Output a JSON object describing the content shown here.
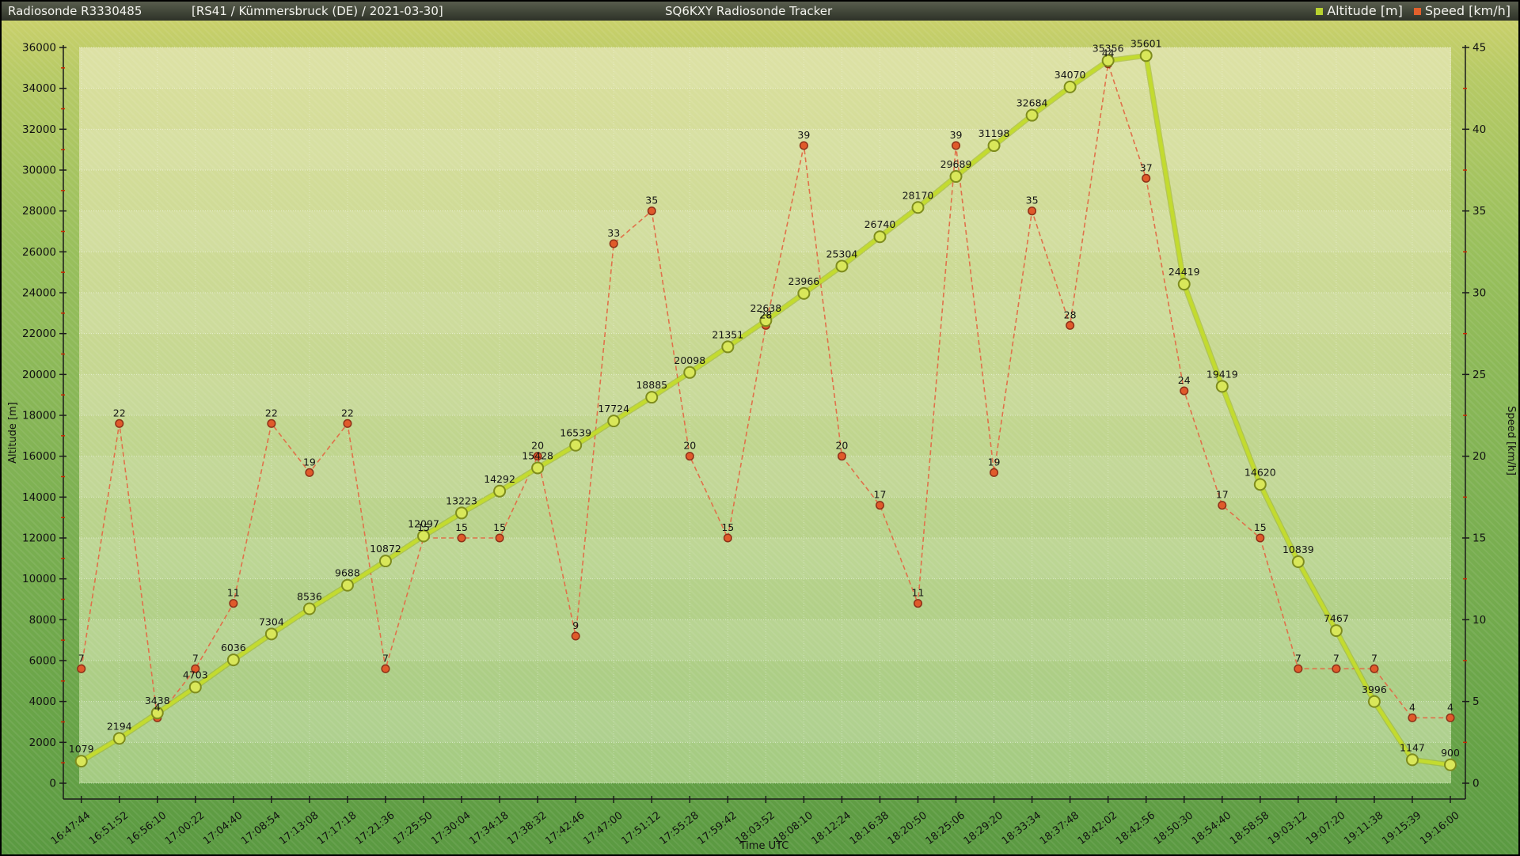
{
  "header": {
    "title_left": "Radiosonde R3330485",
    "title_info": "[RS41 / Kümmersbruck (DE) / 2021-03-30]",
    "title_center": "SQ6KXY Radiosonde Tracker",
    "legend": [
      {
        "label": "Altitude [m]",
        "color": "#b8d22f"
      },
      {
        "label": "Speed [km/h]",
        "color": "#e2602c"
      }
    ]
  },
  "chart_data": {
    "type": "line",
    "x": [
      "16:47:44",
      "16:51:52",
      "16:56:10",
      "17:00:22",
      "17:04:40",
      "17:08:54",
      "17:13:08",
      "17:17:18",
      "17:21:36",
      "17:25:50",
      "17:30:04",
      "17:34:18",
      "17:38:32",
      "17:42:46",
      "17:47:00",
      "17:51:12",
      "17:55:28",
      "17:59:42",
      "18:03:52",
      "18:08:10",
      "18:12:24",
      "18:16:38",
      "18:20:50",
      "18:25:06",
      "18:29:20",
      "18:33:34",
      "18:37:48",
      "18:42:02",
      "18:42:56",
      "18:50:30",
      "18:54:40",
      "18:58:58",
      "19:03:12",
      "19:07:20",
      "19:11:38",
      "19:15:39",
      "19:16:00"
    ],
    "series": [
      {
        "name": "Altitude [m]",
        "axis": "left",
        "style": "solid",
        "line_color": "#c3db2f",
        "edge_color": "#9bb322",
        "marker_fill": "#d9e75a",
        "marker_stroke": "#7e8c1d",
        "values": [
          1079,
          2194,
          3438,
          4703,
          6036,
          7304,
          8536,
          9688,
          10872,
          12097,
          13223,
          14292,
          15428,
          16539,
          17724,
          18885,
          20098,
          21351,
          22638,
          23966,
          25304,
          26740,
          28170,
          29689,
          31198,
          32684,
          34070,
          35356,
          35601,
          24419,
          19419,
          14620,
          10839,
          7467,
          3996,
          1147,
          900
        ]
      },
      {
        "name": "Speed [km/h]",
        "axis": "right",
        "style": "dashed",
        "line_color": "#e0714a",
        "marker_fill": "#e05a2b",
        "marker_stroke": "#8e3018",
        "values": [
          7,
          22,
          4,
          7,
          11,
          22,
          19,
          22,
          7,
          15,
          15,
          15,
          20,
          9,
          33,
          35,
          20,
          15,
          28,
          39,
          20,
          17,
          11,
          39,
          19,
          35,
          28,
          44,
          37,
          24,
          17,
          15,
          7,
          7,
          7,
          4,
          4
        ]
      }
    ],
    "xlabel": "Time UTC",
    "ylabel_left": "Altitude [m]",
    "ylabel_right": "Speed [km/h]",
    "ylim_left": [
      0,
      36000
    ],
    "ylim_right": [
      0,
      45
    ],
    "ytick_step_left": 2000,
    "ytick_step_right": 5,
    "minor_tick_color": "#cc2a00",
    "grid": true,
    "legend_position": "top-right"
  }
}
